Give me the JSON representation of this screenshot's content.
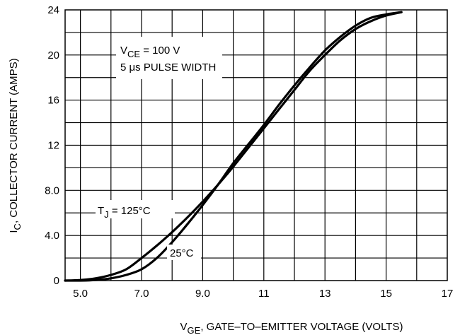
{
  "chart_data": {
    "type": "line",
    "xlabel_main": "V",
    "xlabel_sub": "GE",
    "xlabel_rest": ", GATE–TO–EMITTER VOLTAGE (VOLTS)",
    "ylabel_main": "I",
    "ylabel_sub": "C",
    "ylabel_rest": ", COLLECTOR CURRENT (AMPS)",
    "xlim": [
      4.5,
      17
    ],
    "ylim": [
      0,
      24
    ],
    "x_ticks": [
      {
        "value": 5,
        "label": "5.0"
      },
      {
        "value": 7,
        "label": "7.0"
      },
      {
        "value": 9,
        "label": "9.0"
      },
      {
        "value": 11,
        "label": "11"
      },
      {
        "value": 13,
        "label": "13"
      },
      {
        "value": 15,
        "label": "15"
      },
      {
        "value": 17,
        "label": "17"
      }
    ],
    "y_ticks": [
      {
        "value": 0,
        "label": "0"
      },
      {
        "value": 4,
        "label": "4.0"
      },
      {
        "value": 8,
        "label": "8.0"
      },
      {
        "value": 12,
        "label": "12"
      },
      {
        "value": 16,
        "label": "16"
      },
      {
        "value": 20,
        "label": "20"
      },
      {
        "value": 24,
        "label": "24"
      }
    ],
    "grid": true,
    "annotation": {
      "line1_main": "V",
      "line1_sub": "CE",
      "line1_rest": " = 100 V",
      "line2": "5 μs PULSE WIDTH"
    },
    "series": [
      {
        "label_main": "T",
        "label_sub": "J",
        "label_rest": " = 125°C",
        "x": [
          4.5,
          5.0,
          5.5,
          6.0,
          6.5,
          7.0,
          7.5,
          8.0,
          8.5,
          9.0,
          9.5,
          10.0,
          10.5,
          11.0,
          11.5,
          12.0,
          12.5,
          13.0,
          13.5,
          14.0,
          14.5,
          15.0,
          15.5
        ],
        "y": [
          0.0,
          0.05,
          0.2,
          0.5,
          1.0,
          2.0,
          3.1,
          4.3,
          5.6,
          7.0,
          8.5,
          10.1,
          11.8,
          13.5,
          15.2,
          16.9,
          18.6,
          20.0,
          21.3,
          22.3,
          23.0,
          23.5,
          23.8
        ]
      },
      {
        "label": "25°C",
        "x": [
          4.5,
          5.0,
          5.5,
          6.0,
          6.5,
          7.0,
          7.5,
          8.0,
          8.5,
          9.0,
          9.5,
          10.0,
          10.5,
          11.0,
          11.5,
          12.0,
          12.5,
          13.0,
          13.5,
          14.0,
          14.5,
          15.0,
          15.5
        ],
        "y": [
          0.0,
          0.0,
          0.05,
          0.2,
          0.5,
          1.0,
          2.0,
          3.4,
          5.0,
          6.7,
          8.5,
          10.4,
          12.1,
          13.8,
          15.6,
          17.3,
          18.9,
          20.4,
          21.6,
          22.6,
          23.3,
          23.6,
          23.8
        ]
      }
    ]
  }
}
